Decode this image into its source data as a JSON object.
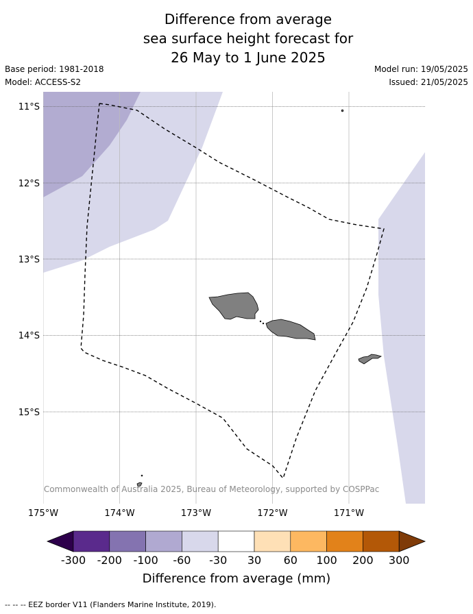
{
  "title": {
    "line1": "Difference from average",
    "line2": "sea surface height forecast for",
    "line3": "26 May to 1 June 2025"
  },
  "meta": {
    "base_period": "Base period: 1981-2018",
    "model": "Model: ACCESS-S2",
    "model_run": "Model run: 19/05/2025",
    "issued": "Issued: 21/05/2025"
  },
  "map": {
    "lon_range": [
      -175.0,
      -170.0
    ],
    "lat_range": [
      -16.2,
      -10.8
    ],
    "lat_labels": [
      "11°S",
      "12°S",
      "13°S",
      "14°S",
      "15°S"
    ],
    "lon_labels": [
      "175°W",
      "174°W",
      "173°W",
      "172°W",
      "171°W"
    ],
    "copyright": "© Commonwealth of Australia 2025, Bureau of Meteorology, supported by COSPPac",
    "colors": {
      "anom_minus60_to_minus30": "#d8d8eb",
      "anom_minus100_to_minus60": "#b2acd1",
      "land": "#808080",
      "eez": "#000000"
    }
  },
  "colorbar": {
    "label": "Difference from average (mm)",
    "ticks": [
      "-300",
      "-200",
      "-100",
      "-60",
      "-30",
      "30",
      "60",
      "100",
      "200",
      "300"
    ],
    "colors": [
      "#5a2a8c",
      "#8473b0",
      "#b0a9d1",
      "#d8d8eb",
      "#ffffff",
      "#fee0b6",
      "#fdb861",
      "#e2821a",
      "#b35807"
    ],
    "extend_low_color": "#2d004b",
    "extend_high_color": "#7f3b08"
  },
  "footer": {
    "legend_text": "--  --  -- EEZ border V11 (Flanders Marine Institute, 2019)."
  }
}
